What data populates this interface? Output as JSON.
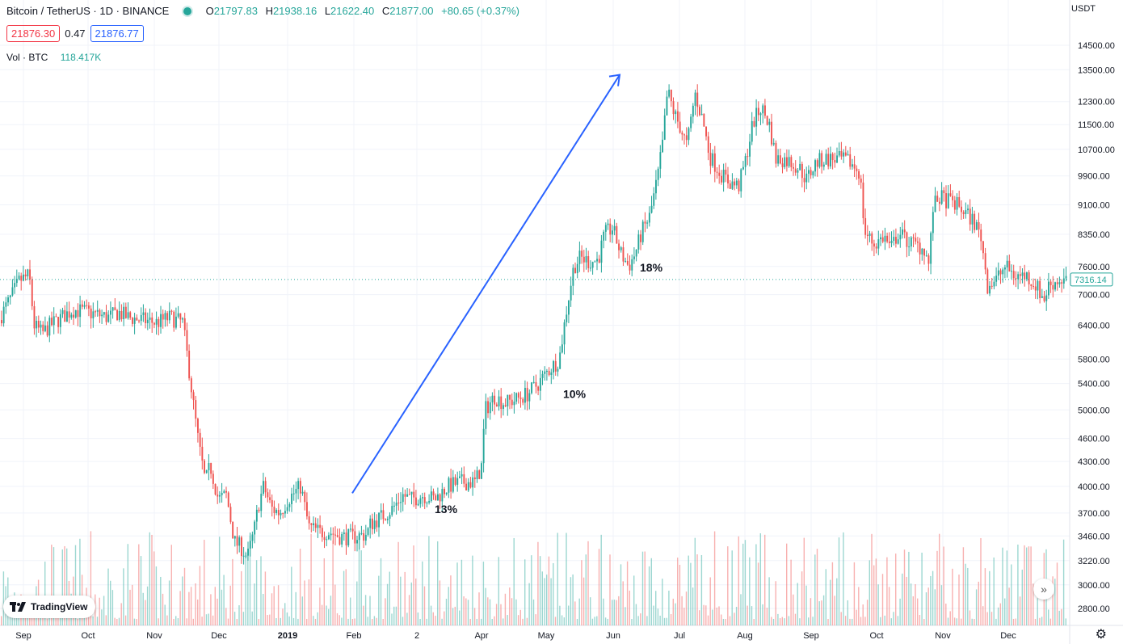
{
  "legend": {
    "symbol": "Bitcoin / TetherUS · 1D · BINANCE",
    "open_label": "O",
    "open": "21797.83",
    "high_label": "H",
    "high": "21938.16",
    "low_label": "L",
    "low": "21622.40",
    "close_label": "C",
    "close": "21877.00",
    "change": "+80.65 (+0.37%)"
  },
  "prices": {
    "bid": "21876.30",
    "spread": "0.47",
    "ask": "21876.77"
  },
  "volume": {
    "label": "Vol · BTC",
    "value": "118.417K"
  },
  "currency": "USDT",
  "logo_text": "TradingView",
  "colors": {
    "up": "#26a69a",
    "down": "#ef5350",
    "arrow": "#2962ff",
    "grid": "#f0f3fa"
  },
  "chart_data": {
    "type": "candlestick",
    "y_scale": "log",
    "ylim": [
      2650,
      15400
    ],
    "y_ticks": [
      2800,
      3000,
      3220,
      3460,
      3700,
      4000,
      4300,
      4600,
      5000,
      5400,
      5800,
      6400,
      7000,
      7600,
      8350,
      9100,
      9900,
      10700,
      11500,
      12300,
      13500,
      14500
    ],
    "y_tick_labels": [
      "2800.00",
      "3000.00",
      "3220.00",
      "3460.00",
      "3700.00",
      "4000.00",
      "4300.00",
      "4600.00",
      "5000.00",
      "5400.00",
      "5800.00",
      "6400.00",
      "7000.00",
      "7600.00",
      "8350.00",
      "9100.00",
      "9900.00",
      "10700.00",
      "11500.00",
      "12300.00",
      "13500.00",
      "14500.00"
    ],
    "x_ticks": [
      "Sep",
      "Oct",
      "Nov",
      "Dec",
      "2019",
      "Feb",
      "2",
      "Apr",
      "May",
      "Jun",
      "Jul",
      "Aug",
      "Sep",
      "Oct",
      "Nov",
      "Dec"
    ],
    "last_price_label": "7316.14",
    "last_price": 7316.14,
    "price_path": [
      [
        0,
        6500
      ],
      [
        14,
        6900
      ],
      [
        26,
        7300
      ],
      [
        38,
        7400
      ],
      [
        44,
        6400
      ],
      [
        54,
        6250
      ],
      [
        64,
        6400
      ],
      [
        78,
        6550
      ],
      [
        92,
        6700
      ],
      [
        110,
        6650
      ],
      [
        136,
        6550
      ],
      [
        148,
        6650
      ],
      [
        160,
        6550
      ],
      [
        178,
        6500
      ],
      [
        196,
        6450
      ],
      [
        212,
        6550
      ],
      [
        228,
        6450
      ],
      [
        236,
        5600
      ],
      [
        242,
        5000
      ],
      [
        248,
        4500
      ],
      [
        256,
        4050
      ],
      [
        262,
        4250
      ],
      [
        272,
        3850
      ],
      [
        282,
        3900
      ],
      [
        292,
        3400
      ],
      [
        300,
        3350
      ],
      [
        308,
        3250
      ],
      [
        316,
        3500
      ],
      [
        322,
        3800
      ],
      [
        328,
        4000
      ],
      [
        338,
        3750
      ],
      [
        348,
        3700
      ],
      [
        358,
        3850
      ],
      [
        374,
        4000
      ],
      [
        384,
        3550
      ],
      [
        398,
        3500
      ],
      [
        410,
        3500
      ],
      [
        424,
        3450
      ],
      [
        440,
        3450
      ],
      [
        456,
        3480
      ],
      [
        460,
        3580
      ],
      [
        472,
        3650
      ],
      [
        488,
        3750
      ],
      [
        500,
        3900
      ],
      [
        510,
        3850
      ],
      [
        526,
        3900
      ],
      [
        540,
        3850
      ],
      [
        556,
        4000
      ],
      [
        572,
        4050
      ],
      [
        590,
        4050
      ],
      [
        598,
        4250
      ],
      [
        602,
        5000
      ],
      [
        614,
        5200
      ],
      [
        626,
        5100
      ],
      [
        640,
        5150
      ],
      [
        656,
        5250
      ],
      [
        668,
        5400
      ],
      [
        680,
        5600
      ],
      [
        694,
        5800
      ],
      [
        704,
        6800
      ],
      [
        712,
        7600
      ],
      [
        720,
        7800
      ],
      [
        732,
        7700
      ],
      [
        742,
        7750
      ],
      [
        750,
        8350
      ],
      [
        760,
        8500
      ],
      [
        770,
        7900
      ],
      [
        780,
        7600
      ],
      [
        788,
        7900
      ],
      [
        796,
        8400
      ],
      [
        806,
        8800
      ],
      [
        816,
        9900
      ],
      [
        822,
        10900
      ],
      [
        828,
        12700
      ],
      [
        836,
        11900
      ],
      [
        844,
        11400
      ],
      [
        852,
        10800
      ],
      [
        862,
        12600
      ],
      [
        872,
        11600
      ],
      [
        880,
        10500
      ],
      [
        888,
        10200
      ],
      [
        896,
        9900
      ],
      [
        906,
        9700
      ],
      [
        916,
        9600
      ],
      [
        924,
        10300
      ],
      [
        934,
        11600
      ],
      [
        944,
        12100
      ],
      [
        954,
        11500
      ],
      [
        962,
        10400
      ],
      [
        972,
        10400
      ],
      [
        982,
        10300
      ],
      [
        992,
        10100
      ],
      [
        1000,
        9800
      ],
      [
        1012,
        10300
      ],
      [
        1024,
        10400
      ],
      [
        1040,
        10400
      ],
      [
        1054,
        10300
      ],
      [
        1066,
        10000
      ],
      [
        1072,
        8400
      ],
      [
        1084,
        8100
      ],
      [
        1096,
        8300
      ],
      [
        1104,
        8000
      ],
      [
        1114,
        8400
      ],
      [
        1124,
        8200
      ],
      [
        1134,
        8100
      ],
      [
        1146,
        8000
      ],
      [
        1152,
        7600
      ],
      [
        1156,
        9000
      ],
      [
        1164,
        9300
      ],
      [
        1176,
        9200
      ],
      [
        1186,
        9100
      ],
      [
        1196,
        8900
      ],
      [
        1206,
        8700
      ],
      [
        1216,
        8300
      ],
      [
        1224,
        7200
      ],
      [
        1234,
        7300
      ],
      [
        1246,
        7600
      ],
      [
        1258,
        7400
      ],
      [
        1272,
        7400
      ],
      [
        1284,
        7200
      ],
      [
        1294,
        6900
      ],
      [
        1300,
        7200
      ],
      [
        1312,
        7300
      ],
      [
        1322,
        7316
      ]
    ],
    "annotations": [
      {
        "text": "13%",
        "x": 3750,
        "label": "13%"
      },
      {
        "text": "10%",
        "x": 5250,
        "label": "10%"
      },
      {
        "text": "18%",
        "x": 7600,
        "label": "18%"
      }
    ],
    "annotation_labels": [
      "13%",
      "10%",
      "18%"
    ],
    "trend_arrow": {
      "from_price": 3920,
      "to_price": 13300,
      "color": "#2962ff"
    },
    "volume_ylim_note": "volume histogram in lower pane, same colors as candles",
    "grid": true
  }
}
